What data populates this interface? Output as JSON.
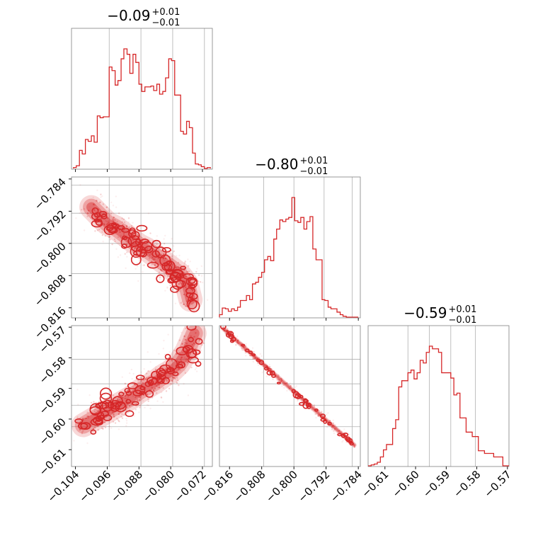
{
  "chart_data": {
    "type": "corner",
    "color": "#d62728",
    "grid": true,
    "parameters": [
      {
        "title": {
          "main": "−0.09",
          "plus": "+0.01",
          "minus": "−0.01"
        },
        "range": [
          -0.105,
          -0.0695
        ],
        "ticks": [
          -0.104,
          -0.096,
          -0.088,
          -0.08,
          -0.072
        ],
        "tick_labels": [
          "−0.104",
          "−0.096",
          "−0.088",
          "−0.080",
          "−0.072"
        ],
        "quantiles": [
          -0.0955,
          -0.0875,
          -0.0795,
          -0.0715
        ],
        "hist": {
          "bins": [
            -0.1045,
            -0.1038,
            -0.103,
            -0.1023,
            -0.1015,
            -0.1008,
            -0.1,
            -0.0993,
            -0.0985,
            -0.0978,
            -0.097,
            -0.0963,
            -0.0955,
            -0.0948,
            -0.094,
            -0.0933,
            -0.0925,
            -0.0918,
            -0.091,
            -0.0903,
            -0.0895,
            -0.0888,
            -0.088,
            -0.0873,
            -0.0865,
            -0.0858,
            -0.085,
            -0.0843,
            -0.0835,
            -0.0828,
            -0.082,
            -0.0813,
            -0.0805,
            -0.0798,
            -0.079,
            -0.0783,
            -0.0775,
            -0.0768,
            -0.076,
            -0.0753,
            -0.0745,
            -0.0738,
            -0.073,
            -0.0723,
            -0.0715,
            -0.0708,
            -0.07
          ],
          "counts": [
            1,
            3,
            20,
            16,
            32,
            30,
            36,
            29,
            58,
            56,
            57,
            57,
            112,
            108,
            92,
            97,
            121,
            132,
            126,
            105,
            126,
            117,
            93,
            85,
            90,
            90,
            91,
            86,
            93,
            82,
            85,
            100,
            121,
            119,
            81,
            81,
            41,
            38,
            52,
            45,
            17,
            5,
            4,
            2,
            0,
            1
          ]
        }
      },
      {
        "title": {
          "main": "−0.80",
          "plus": "+0.01",
          "minus": "−0.01"
        },
        "range": [
          -0.8185,
          -0.7835
        ],
        "ticks": [
          -0.816,
          -0.808,
          -0.8,
          -0.792,
          -0.784
        ],
        "tick_labels": [
          "−0.816",
          "−0.808",
          "−0.800",
          "−0.792",
          "−0.784"
        ],
        "quantiles": [
          -0.8075,
          -0.8,
          -0.7925,
          -0.7855
        ],
        "hist": {
          "bins": [
            -0.8185,
            -0.8178,
            -0.817,
            -0.8163,
            -0.8155,
            -0.8148,
            -0.814,
            -0.8133,
            -0.8125,
            -0.8118,
            -0.811,
            -0.8103,
            -0.8095,
            -0.8088,
            -0.808,
            -0.8073,
            -0.8065,
            -0.8058,
            -0.805,
            -0.8043,
            -0.8035,
            -0.8028,
            -0.802,
            -0.8013,
            -0.8005,
            -0.7998,
            -0.799,
            -0.7983,
            -0.7975,
            -0.7968,
            -0.796,
            -0.7953,
            -0.7945,
            -0.7938,
            -0.793,
            -0.7923,
            -0.7915,
            -0.7908,
            -0.79,
            -0.7893,
            -0.7885,
            -0.7878,
            -0.787,
            -0.7863,
            -0.7855,
            -0.7848,
            -0.784
          ],
          "counts": [
            3,
            11,
            10,
            7,
            10,
            8,
            12,
            20,
            20,
            26,
            21,
            40,
            42,
            48,
            54,
            69,
            73,
            68,
            94,
            106,
            117,
            115,
            118,
            120,
            144,
            116,
            114,
            120,
            106,
            115,
            121,
            82,
            69,
            69,
            21,
            20,
            12,
            10,
            10,
            6,
            3,
            1,
            0,
            0,
            0,
            0
          ]
        }
      },
      {
        "title": {
          "main": "−0.59",
          "plus": "+0.01",
          "minus": "−0.01"
        },
        "range": [
          -0.6155,
          -0.5695
        ],
        "ticks": [
          -0.61,
          -0.6,
          -0.59,
          -0.58,
          -0.57
        ],
        "tick_labels": [
          "−0.61",
          "−0.60",
          "−0.59",
          "−0.58",
          "−0.57"
        ],
        "quantiles": [
          -0.6025,
          -0.5955,
          -0.5885,
          -0.5805
        ],
        "hist": {
          "bins": [
            -0.6155,
            -0.6145,
            -0.6135,
            -0.6125,
            -0.6115,
            -0.6105,
            -0.6095,
            -0.6085,
            -0.6075,
            -0.6065,
            -0.6055,
            -0.6045,
            -0.6035,
            -0.6025,
            -0.6015,
            -0.6005,
            -0.5995,
            -0.5985,
            -0.5975,
            -0.5965,
            -0.5955,
            -0.5945,
            -0.5935,
            -0.5925,
            -0.5915,
            -0.5905,
            -0.5895,
            -0.5885,
            -0.5875,
            -0.5865,
            -0.5855,
            -0.5845,
            -0.5835,
            -0.5825,
            -0.5815,
            -0.5805,
            -0.5795,
            -0.5785,
            -0.5775,
            -0.5765,
            -0.5755,
            -0.5745,
            -0.5735,
            -0.5725,
            -0.5715,
            -0.5705,
            -0.5695
          ],
          "counts": [
            0,
            1,
            2,
            4,
            10,
            18,
            24,
            24,
            42,
            52,
            89,
            96,
            96,
            105,
            108,
            98,
            105,
            119,
            116,
            128,
            135,
            132,
            132,
            128,
            105,
            105,
            105,
            99,
            80,
            82,
            54,
            54,
            38,
            38,
            33,
            33,
            17,
            17,
            14,
            14,
            14,
            10,
            10,
            10,
            0,
            0
          ]
        }
      }
    ],
    "scatter_pairs": [
      {
        "x_param": 0,
        "y_param": 1,
        "samples": [
          [
            -0.1,
            -0.791
          ],
          [
            -0.098,
            -0.793
          ],
          [
            -0.096,
            -0.795
          ],
          [
            -0.094,
            -0.796
          ],
          [
            -0.092,
            -0.7975
          ],
          [
            -0.09,
            -0.799
          ],
          [
            -0.088,
            -0.8005
          ],
          [
            -0.086,
            -0.8015
          ],
          [
            -0.084,
            -0.803
          ],
          [
            -0.082,
            -0.8045
          ],
          [
            -0.08,
            -0.806
          ],
          [
            -0.078,
            -0.8075
          ],
          [
            -0.076,
            -0.81
          ],
          [
            -0.075,
            -0.814
          ]
        ],
        "contour_levels": 3
      },
      {
        "x_param": 0,
        "y_param": 2,
        "samples": [
          [
            -0.102,
            -0.602
          ],
          [
            -0.1,
            -0.6005
          ],
          [
            -0.098,
            -0.599
          ],
          [
            -0.096,
            -0.5975
          ],
          [
            -0.094,
            -0.596
          ],
          [
            -0.092,
            -0.5945
          ],
          [
            -0.09,
            -0.593
          ],
          [
            -0.088,
            -0.591
          ],
          [
            -0.086,
            -0.5895
          ],
          [
            -0.084,
            -0.588
          ],
          [
            -0.082,
            -0.586
          ],
          [
            -0.08,
            -0.5845
          ],
          [
            -0.078,
            -0.582
          ],
          [
            -0.076,
            -0.578
          ],
          [
            -0.074,
            -0.572
          ]
        ],
        "contour_levels": 3
      },
      {
        "x_param": 1,
        "y_param": 2,
        "samples": [
          [
            -0.8175,
            -0.5705
          ],
          [
            -0.815,
            -0.5735
          ],
          [
            -0.812,
            -0.577
          ],
          [
            -0.809,
            -0.5805
          ],
          [
            -0.806,
            -0.584
          ],
          [
            -0.803,
            -0.5875
          ],
          [
            -0.8,
            -0.591
          ],
          [
            -0.797,
            -0.5945
          ],
          [
            -0.794,
            -0.598
          ],
          [
            -0.791,
            -0.6015
          ],
          [
            -0.788,
            -0.605
          ],
          [
            -0.785,
            -0.6085
          ]
        ],
        "contour_levels": 3
      }
    ]
  }
}
